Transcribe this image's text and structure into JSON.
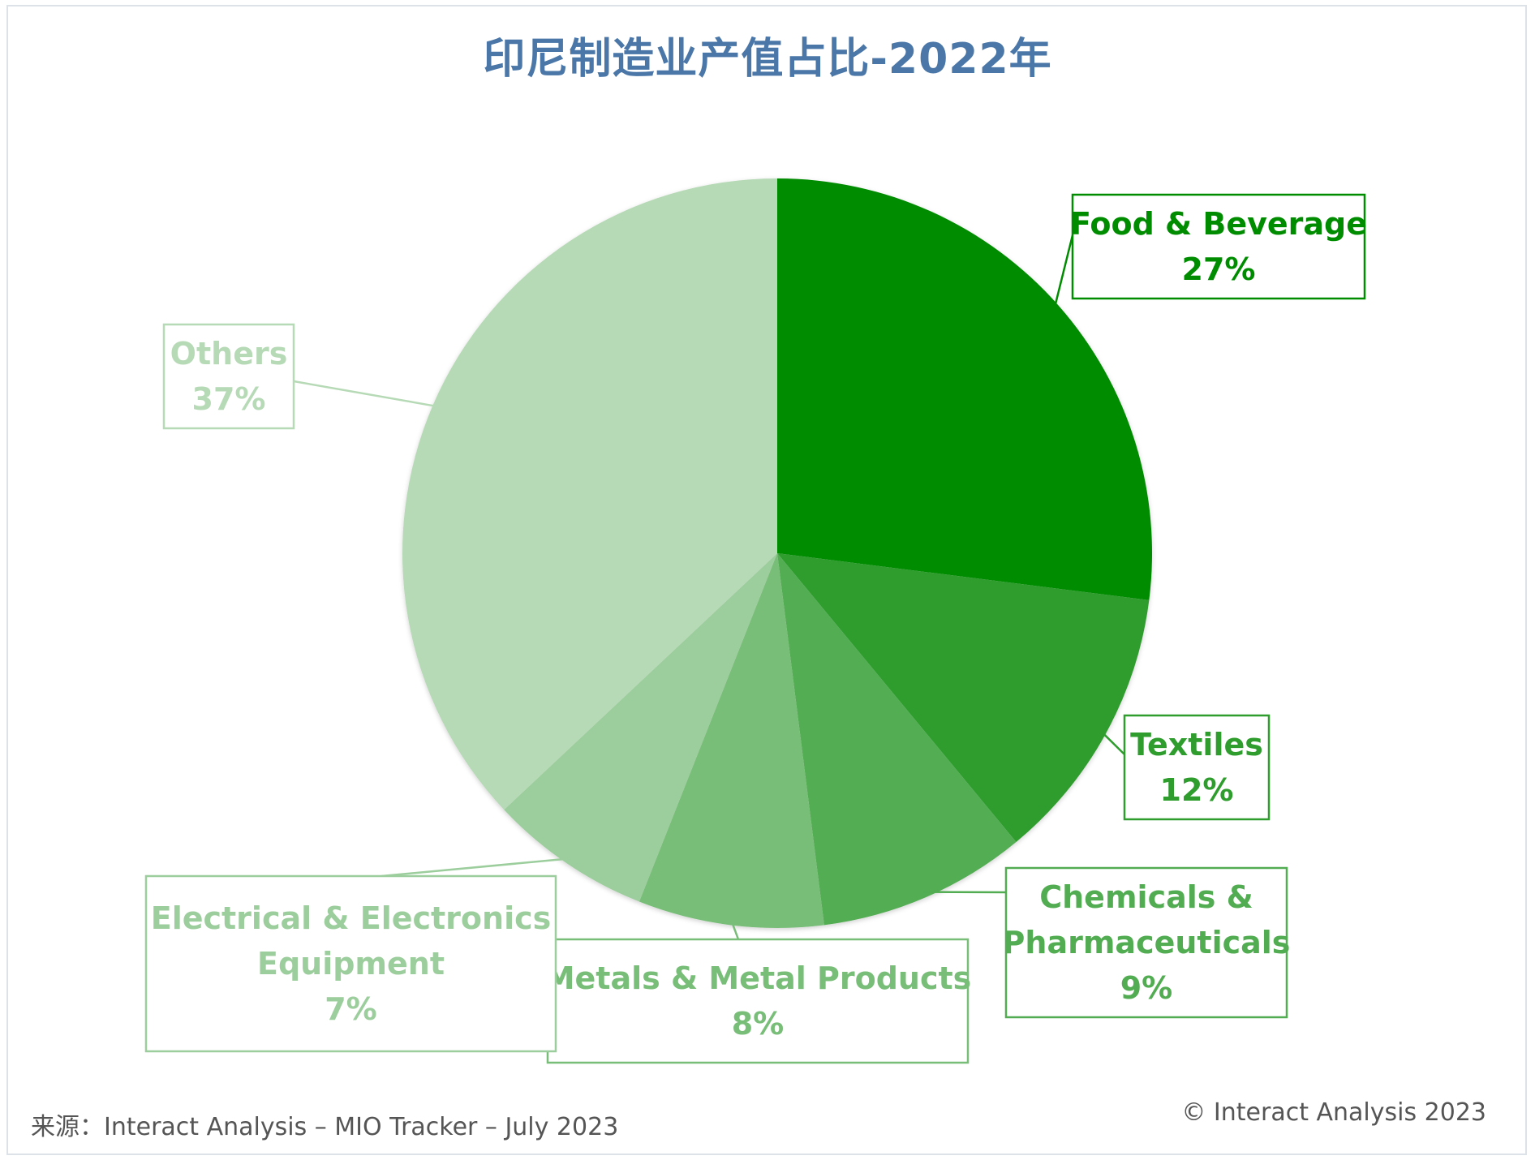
{
  "title": "印尼制造业产值占比-2022年",
  "source": "来源：Interact Analysis – MIO Tracker – July 2023",
  "copyright": "© Interact Analysis 2023",
  "chart_data": {
    "type": "pie",
    "title": "印尼制造业产值占比-2022年",
    "start_angle_deg": 0,
    "direction": "clockwise",
    "slices": [
      {
        "name": "Food & Beverage",
        "label_lines": [
          "Food & Beverage"
        ],
        "value": 27,
        "value_label": "27%",
        "color": "#008c00"
      },
      {
        "name": "Textiles",
        "label_lines": [
          "Textiles"
        ],
        "value": 12,
        "value_label": "12%",
        "color": "#2e9d2e"
      },
      {
        "name": "Chemicals & Pharmaceuticals",
        "label_lines": [
          "Chemicals &",
          "Pharmaceuticals"
        ],
        "value": 9,
        "value_label": "9%",
        "color": "#52ad52"
      },
      {
        "name": "Metals & Metal Products",
        "label_lines": [
          "Metals & Metal Products"
        ],
        "value": 8,
        "value_label": "8%",
        "color": "#78bd78"
      },
      {
        "name": "Electrical & Electronics Equipment",
        "label_lines": [
          "Electrical & Electronics",
          "Equipment"
        ],
        "value": 7,
        "value_label": "7%",
        "color": "#9ccd9c"
      },
      {
        "name": "Others",
        "label_lines": [
          "Others"
        ],
        "value": 37,
        "value_label": "37%",
        "color": "#b6d9b6"
      }
    ]
  }
}
